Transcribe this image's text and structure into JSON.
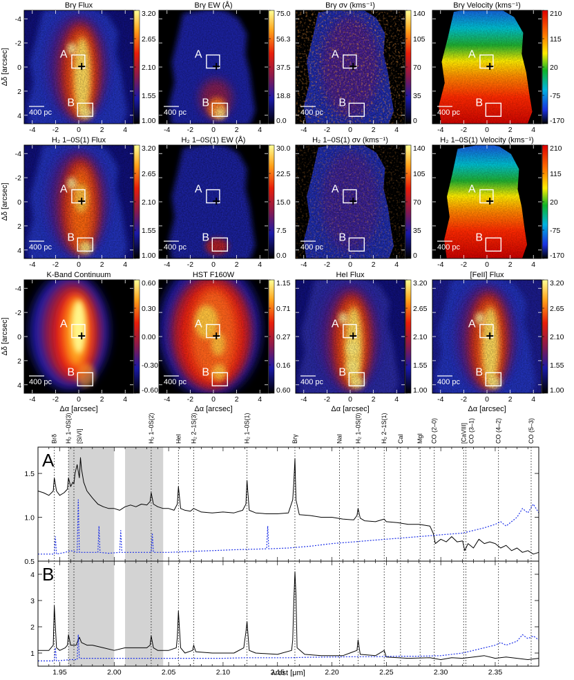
{
  "maps": {
    "ylabel": "Δδ [arcsec]",
    "xlabel": "Δα [arcsec]",
    "ticks": [
      "-4",
      "-2",
      "0",
      "2",
      "4"
    ],
    "box_labels": [
      "A",
      "B"
    ],
    "scale_bar_label": "400 pc",
    "panels": [
      {
        "title": "Brγ Flux",
        "cbar": [
          "3.20",
          "2.65",
          "2.10",
          "1.55",
          "1.00"
        ],
        "cmap": "heat",
        "style": "source"
      },
      {
        "title": "Brγ EW (Å)",
        "cbar": [
          "75.0",
          "56.3",
          "37.5",
          "18.8",
          "0.0"
        ],
        "cmap": "heat",
        "style": "ew"
      },
      {
        "title": "Brγ σv (kms⁻¹)",
        "cbar": [
          "140",
          "105",
          "70",
          "35",
          "0"
        ],
        "cmap": "heat",
        "style": "sigma"
      },
      {
        "title": "Brγ Velocity (kms⁻¹)",
        "cbar": [
          "210",
          "115",
          "20",
          "-75",
          "-170"
        ],
        "cmap": "rainbow",
        "style": "velocity"
      },
      {
        "title": "H₂ 1–0S(1) Flux",
        "cbar": [
          "3.20",
          "2.65",
          "2.10",
          "1.55",
          "1.00"
        ],
        "cmap": "heat",
        "style": "h2flux"
      },
      {
        "title": "H₂ 1–0S(1) EW (Å)",
        "cbar": [
          "30.0",
          "22.5",
          "15.0",
          "7.5",
          "0.0"
        ],
        "cmap": "heat",
        "style": "h2ew"
      },
      {
        "title": "H₂ 1–0S(1) σv (kms⁻¹)",
        "cbar": [
          "140",
          "105",
          "70",
          "35",
          "0"
        ],
        "cmap": "heat",
        "style": "h2sigma"
      },
      {
        "title": "H₂ 1–0S(1) Velocity (kms⁻¹)",
        "cbar": [
          "210",
          "115",
          "20",
          "-75",
          "-170"
        ],
        "cmap": "rainbow",
        "style": "h2vel"
      },
      {
        "title": "K-Band Continuum",
        "cbar": [
          "0.60",
          "0.30",
          "0.00",
          "-0.30",
          "-0.60"
        ],
        "cmap": "heat",
        "style": "kcont"
      },
      {
        "title": "HST F160W",
        "cbar": [
          "1.15",
          "0.71",
          "0.27",
          "0.16",
          "0.60"
        ],
        "cmap": "heat",
        "style": "hst"
      },
      {
        "title": "HeI Flux",
        "cbar": [
          "3.20",
          "2.65",
          "2.10",
          "1.55",
          "1.00"
        ],
        "cmap": "heat",
        "style": "hei"
      },
      {
        "title": "[FeII] Flux",
        "cbar": [
          "3.20",
          "2.65",
          "2.10",
          "1.55",
          "1.00"
        ],
        "cmap": "heat",
        "style": "feii"
      }
    ]
  },
  "chart_data": {
    "type": "line",
    "xlabel": "λrest [μm]",
    "xlim": [
      1.93,
      2.39
    ],
    "xticks": [
      "1.95",
      "2.00",
      "2.05",
      "2.10",
      "2.15",
      "2.20",
      "2.25",
      "2.30",
      "2.35"
    ],
    "shaded_regions": [
      [
        1.958,
        2.0
      ],
      [
        2.01,
        2.045
      ]
    ],
    "line_labels": [
      {
        "label": "Brδ",
        "x": 1.945
      },
      {
        "label": "H₂ 1–0S(3)",
        "x": 1.958
      },
      {
        "label": "[SiVI]",
        "x": 1.963
      },
      {
        "label": "H₂ 1–0S(2)",
        "x": 2.034
      },
      {
        "label": "HeI",
        "x": 2.059
      },
      {
        "label": "H₂ 2–1S(3)",
        "x": 2.073
      },
      {
        "label": "H₂ 1–0S(1)",
        "x": 2.122
      },
      {
        "label": "Brγ",
        "x": 2.166
      },
      {
        "label": "NaI",
        "x": 2.207
      },
      {
        "label": "H₂ 1–0S(0)",
        "x": 2.224
      },
      {
        "label": "H₂ 2–1S(1)",
        "x": 2.248
      },
      {
        "label": "CaI",
        "x": 2.263
      },
      {
        "label": "MgI",
        "x": 2.281
      },
      {
        "label": "CO (2–0)",
        "x": 2.294
      },
      {
        "label": "[CaVIII]",
        "x": 2.321
      },
      {
        "label": "CO (3–1)",
        "x": 2.323
      },
      {
        "label": "CO (4–2)",
        "x": 2.353
      },
      {
        "label": "CO (5–3)",
        "x": 2.383
      }
    ],
    "panels": [
      {
        "label": "A",
        "ylim": [
          0.5,
          1.8
        ],
        "yticks": [
          "0.5",
          "1.0",
          "1.5"
        ],
        "series": [
          {
            "style": "solid",
            "color": "#000000",
            "x": [
              1.93,
              1.935,
              1.94,
              1.944,
              1.945,
              1.947,
              1.95,
              1.954,
              1.957,
              1.958,
              1.96,
              1.962,
              1.963,
              1.964,
              1.966,
              1.968,
              1.969,
              1.97,
              1.972,
              1.975,
              1.98,
              1.985,
              1.99,
              1.995,
              2.0,
              2.005,
              2.01,
              2.015,
              2.02,
              2.025,
              2.03,
              2.033,
              2.034,
              2.036,
              2.04,
              2.045,
              2.05,
              2.055,
              2.058,
              2.059,
              2.061,
              2.065,
              2.07,
              2.073,
              2.08,
              2.09,
              2.1,
              2.11,
              2.118,
              2.121,
              2.122,
              2.124,
              2.13,
              2.14,
              2.15,
              2.16,
              2.164,
              2.165,
              2.166,
              2.167,
              2.17,
              2.18,
              2.19,
              2.2,
              2.21,
              2.22,
              2.223,
              2.224,
              2.226,
              2.23,
              2.24,
              2.248,
              2.25,
              2.26,
              2.27,
              2.28,
              2.29,
              2.293,
              2.295,
              2.3,
              2.305,
              2.31,
              2.315,
              2.32,
              2.322,
              2.325,
              2.33,
              2.335,
              2.34,
              2.345,
              2.35,
              2.355,
              2.36,
              2.365,
              2.37,
              2.375,
              2.38,
              2.385,
              2.39
            ],
            "y": [
              1.3,
              1.28,
              1.25,
              1.3,
              1.45,
              1.3,
              1.25,
              1.28,
              1.32,
              1.45,
              1.35,
              1.4,
              1.38,
              1.5,
              1.6,
              1.45,
              1.68,
              1.55,
              1.4,
              1.3,
              1.22,
              1.15,
              1.12,
              1.1,
              1.1,
              1.08,
              1.12,
              1.14,
              1.12,
              1.15,
              1.14,
              1.18,
              1.28,
              1.15,
              1.12,
              1.1,
              1.1,
              1.08,
              1.15,
              1.35,
              1.1,
              1.08,
              1.07,
              1.1,
              1.06,
              1.05,
              1.06,
              1.05,
              1.08,
              1.15,
              1.42,
              1.08,
              1.05,
              1.04,
              1.04,
              1.05,
              1.2,
              1.4,
              1.67,
              1.2,
              1.03,
              1.02,
              1.0,
              1.0,
              0.98,
              0.97,
              1.02,
              1.1,
              0.99,
              0.96,
              0.95,
              0.98,
              0.95,
              0.94,
              0.92,
              0.92,
              0.9,
              0.82,
              0.7,
              0.75,
              0.72,
              0.78,
              0.72,
              0.73,
              0.62,
              0.7,
              0.65,
              0.75,
              0.7,
              0.72,
              0.7,
              0.65,
              0.68,
              0.62,
              0.65,
              0.6,
              0.62,
              0.58,
              0.6
            ]
          },
          {
            "style": "dotted",
            "color": "#1a2ee8",
            "x": [
              1.93,
              1.945,
              1.946,
              1.947,
              1.955,
              1.96,
              1.966,
              1.967,
              1.968,
              1.975,
              1.985,
              1.986,
              1.987,
              1.995,
              2.005,
              2.006,
              2.007,
              2.02,
              2.03,
              2.034,
              2.035,
              2.036,
              2.05,
              2.07,
              2.09,
              2.11,
              2.14,
              2.141,
              2.142,
              2.16,
              2.18,
              2.2,
              2.22,
              2.24,
              2.26,
              2.28,
              2.3,
              2.32,
              2.34,
              2.35,
              2.355,
              2.36,
              2.37,
              2.375,
              2.38,
              2.385,
              2.39
            ],
            "y": [
              0.58,
              0.58,
              0.78,
              0.58,
              0.6,
              0.62,
              0.6,
              1.2,
              0.6,
              0.6,
              0.6,
              0.9,
              0.6,
              0.59,
              0.6,
              0.85,
              0.6,
              0.6,
              0.6,
              0.6,
              0.82,
              0.6,
              0.6,
              0.61,
              0.62,
              0.63,
              0.64,
              0.9,
              0.64,
              0.65,
              0.67,
              0.7,
              0.72,
              0.74,
              0.76,
              0.78,
              0.8,
              0.82,
              0.88,
              0.92,
              0.95,
              0.9,
              1.0,
              1.1,
              1.05,
              1.15,
              1.05
            ]
          }
        ]
      },
      {
        "label": "B",
        "ylim": [
          0.5,
          4.5
        ],
        "yticks": [
          "1",
          "2",
          "3",
          "4"
        ],
        "series": [
          {
            "style": "solid",
            "color": "#000000",
            "x": [
              1.93,
              1.94,
              1.944,
              1.945,
              1.947,
              1.95,
              1.955,
              1.957,
              1.958,
              1.96,
              1.965,
              1.968,
              1.97,
              1.975,
              1.98,
              1.99,
              2.0,
              2.01,
              2.02,
              2.03,
              2.033,
              2.034,
              2.036,
              2.04,
              2.05,
              2.057,
              2.058,
              2.059,
              2.061,
              2.065,
              2.072,
              2.073,
              2.075,
              2.09,
              2.11,
              2.119,
              2.121,
              2.122,
              2.124,
              2.13,
              2.15,
              2.163,
              2.164,
              2.165,
              2.166,
              2.167,
              2.168,
              2.175,
              2.19,
              2.21,
              2.223,
              2.224,
              2.226,
              2.24,
              2.248,
              2.25,
              2.27,
              2.29,
              2.3,
              2.31,
              2.32,
              2.33,
              2.34,
              2.35,
              2.36,
              2.37,
              2.38,
              2.39
            ],
            "y": [
              1.1,
              1.1,
              1.3,
              2.8,
              1.2,
              1.1,
              1.2,
              1.3,
              1.7,
              1.3,
              1.3,
              1.6,
              1.4,
              1.3,
              1.3,
              1.2,
              1.1,
              1.2,
              1.2,
              1.2,
              1.3,
              1.65,
              1.2,
              1.1,
              1.1,
              1.2,
              1.6,
              2.6,
              1.2,
              1.0,
              1.1,
              1.3,
              1.05,
              1.0,
              1.0,
              1.2,
              1.8,
              2.2,
              1.1,
              1.0,
              0.95,
              1.1,
              1.5,
              3.0,
              4.1,
              3.2,
              1.2,
              0.95,
              0.9,
              0.9,
              1.1,
              1.5,
              0.95,
              0.9,
              1.1,
              0.85,
              0.8,
              0.82,
              0.75,
              0.82,
              0.8,
              0.85,
              0.9,
              0.8,
              0.85,
              0.8,
              0.75,
              0.8
            ]
          },
          {
            "style": "dotted",
            "color": "#1a2ee8",
            "x": [
              1.93,
              1.945,
              1.946,
              1.947,
              1.96,
              1.966,
              1.967,
              1.968,
              1.98,
              2.0,
              2.02,
              2.04,
              2.06,
              2.08,
              2.1,
              2.12,
              2.14,
              2.16,
              2.18,
              2.2,
              2.22,
              2.24,
              2.26,
              2.28,
              2.3,
              2.32,
              2.33,
              2.34,
              2.35,
              2.355,
              2.36,
              2.37,
              2.375,
              2.38,
              2.385,
              2.39
            ],
            "y": [
              0.7,
              0.7,
              1.2,
              0.7,
              0.75,
              0.75,
              1.7,
              0.8,
              0.8,
              0.8,
              0.8,
              0.8,
              0.8,
              0.8,
              0.8,
              0.82,
              0.82,
              0.82,
              0.84,
              0.85,
              0.86,
              0.86,
              0.88,
              0.88,
              0.9,
              1.0,
              1.1,
              1.2,
              1.3,
              1.4,
              1.3,
              1.45,
              1.7,
              1.55,
              1.65,
              1.5
            ]
          }
        ]
      }
    ]
  }
}
